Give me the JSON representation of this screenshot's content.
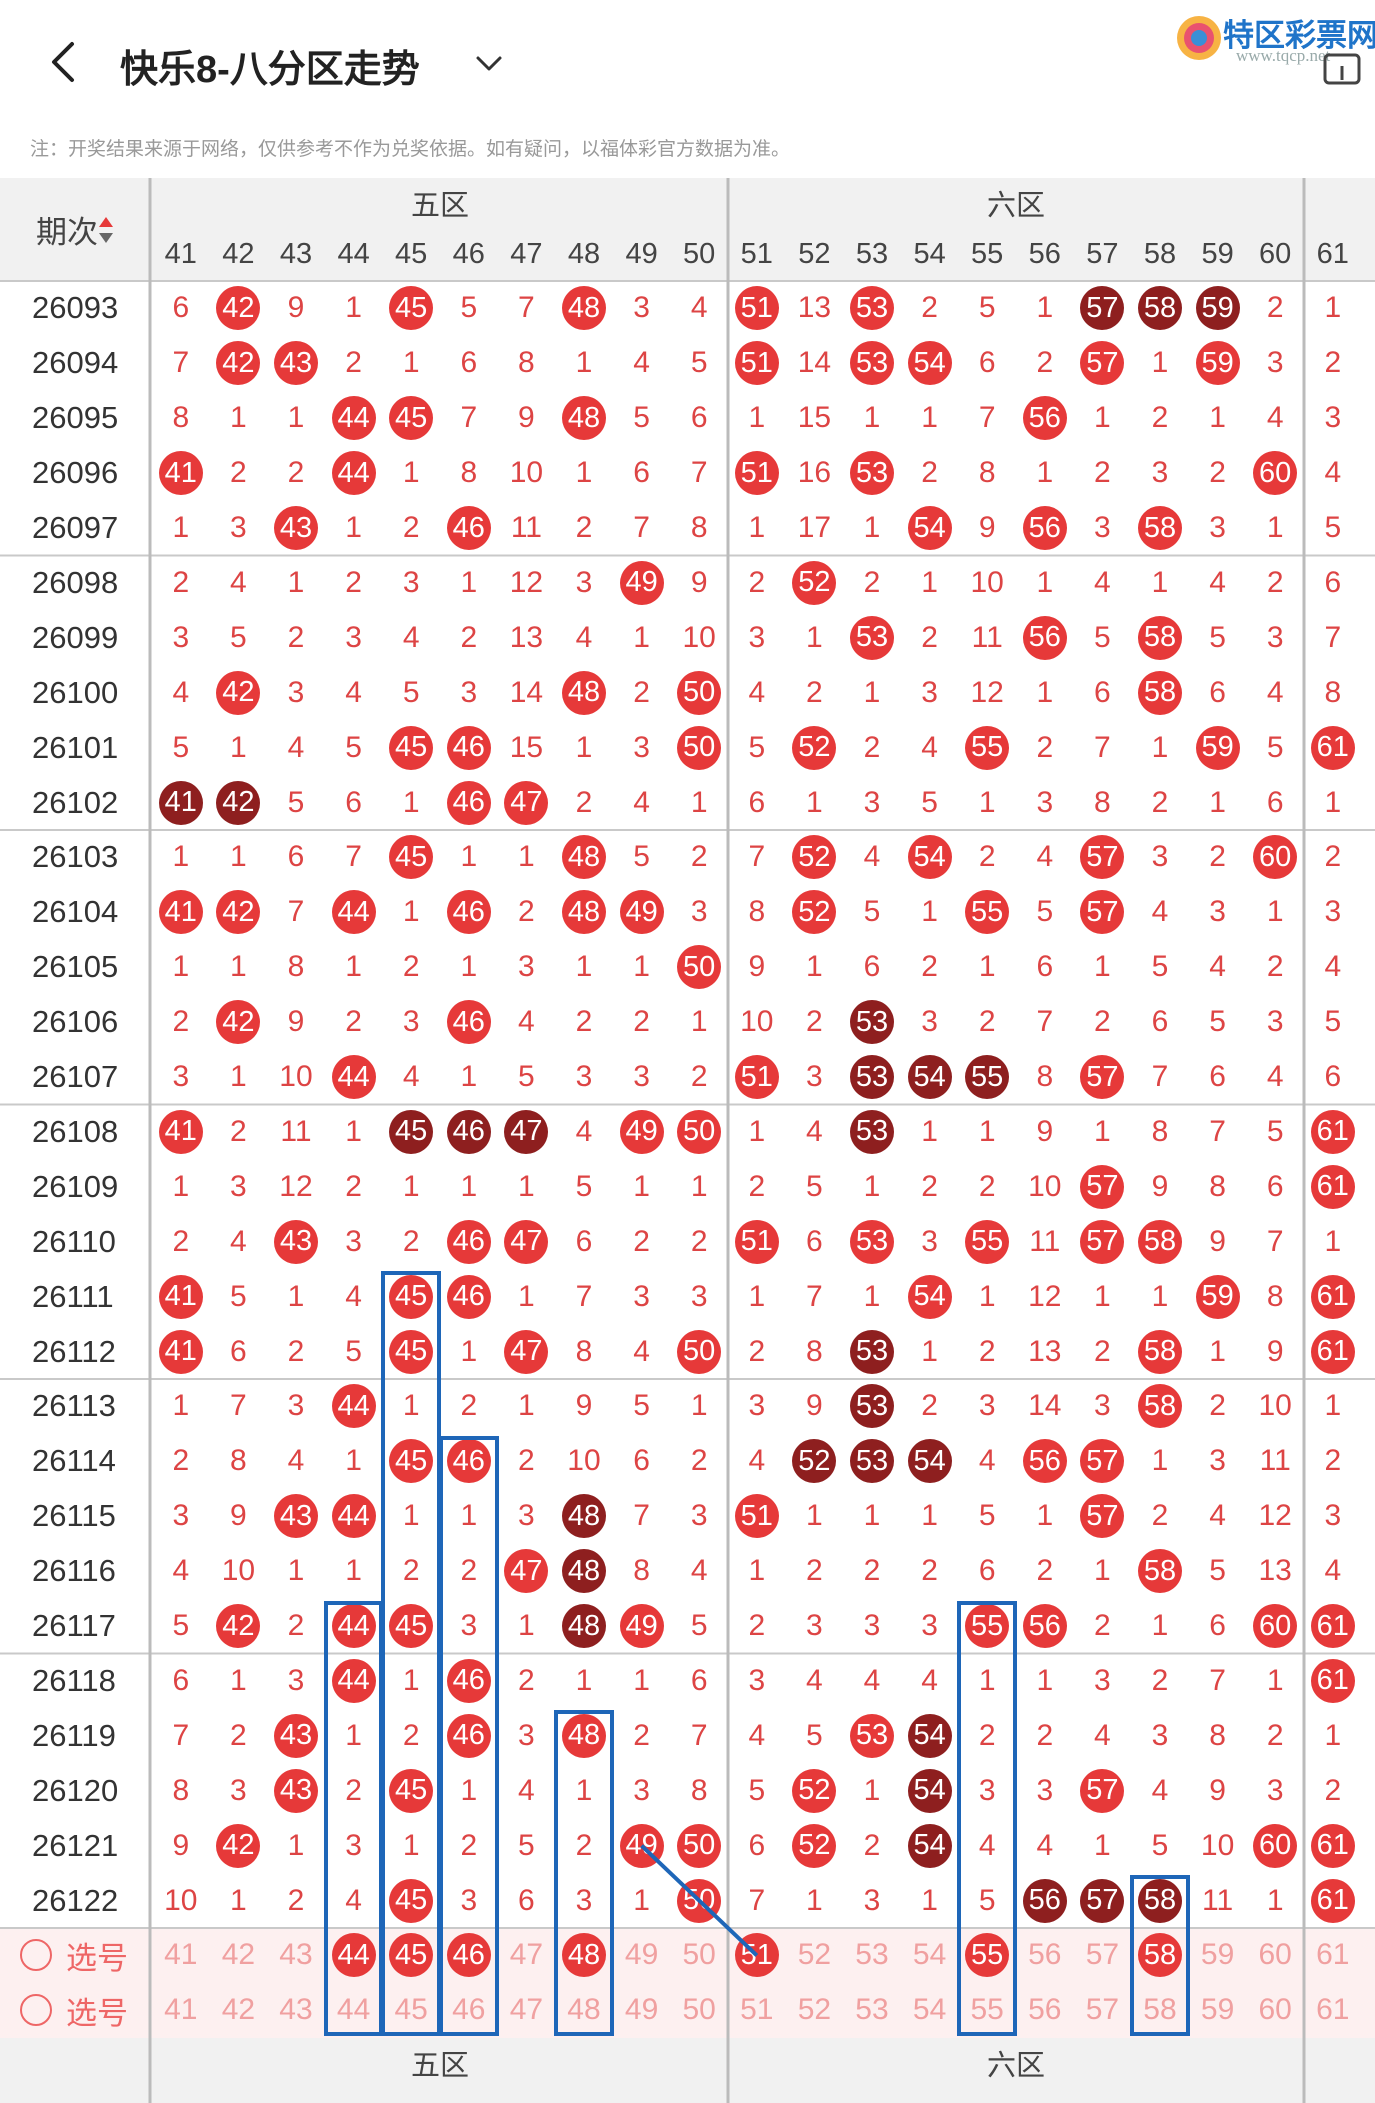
{
  "header": {
    "title": "快乐8-八分区走势",
    "logo_name": "特区彩票网",
    "logo_url": "www.tqcp.net"
  },
  "note": "注：开奖结果来源于网络，仅供参考不作为兑奖依据。如有疑问，以福体彩官方数据为准。",
  "table": {
    "issue_header": "期次",
    "zones": [
      "五区",
      "六区"
    ],
    "columns": [
      41,
      42,
      43,
      44,
      45,
      46,
      47,
      48,
      49,
      50,
      51,
      52,
      53,
      54,
      55,
      56,
      57,
      58,
      59,
      60,
      61
    ],
    "rows": [
      {
        "issue": "26093",
        "cells": [
          "6",
          "42",
          "9",
          "1",
          "45",
          "5",
          "7",
          "48",
          "3",
          "4",
          "51",
          "13",
          "53",
          "2",
          "5",
          "1",
          "57",
          "58",
          "59",
          "2",
          "1"
        ],
        "dark": [
          16,
          17,
          18
        ]
      },
      {
        "issue": "26094",
        "cells": [
          "7",
          "42",
          "43",
          "2",
          "1",
          "6",
          "8",
          "1",
          "4",
          "5",
          "51",
          "14",
          "53",
          "54",
          "6",
          "2",
          "57",
          "1",
          "59",
          "3",
          "2"
        ]
      },
      {
        "issue": "26095",
        "cells": [
          "8",
          "1",
          "1",
          "44",
          "45",
          "7",
          "9",
          "48",
          "5",
          "6",
          "1",
          "15",
          "1",
          "1",
          "7",
          "56",
          "1",
          "2",
          "1",
          "4",
          "3"
        ]
      },
      {
        "issue": "26096",
        "cells": [
          "41",
          "2",
          "2",
          "44",
          "1",
          "8",
          "10",
          "1",
          "6",
          "7",
          "51",
          "16",
          "53",
          "2",
          "8",
          "1",
          "2",
          "3",
          "2",
          "60",
          "4"
        ]
      },
      {
        "issue": "26097",
        "cells": [
          "1",
          "3",
          "43",
          "1",
          "2",
          "46",
          "11",
          "2",
          "7",
          "8",
          "1",
          "17",
          "1",
          "54",
          "9",
          "56",
          "3",
          "58",
          "3",
          "1",
          "5"
        ]
      },
      {
        "issue": "26098",
        "cells": [
          "2",
          "4",
          "1",
          "2",
          "3",
          "1",
          "12",
          "3",
          "49",
          "9",
          "2",
          "52",
          "2",
          "1",
          "10",
          "1",
          "4",
          "1",
          "4",
          "2",
          "6"
        ]
      },
      {
        "issue": "26099",
        "cells": [
          "3",
          "5",
          "2",
          "3",
          "4",
          "2",
          "13",
          "4",
          "1",
          "10",
          "3",
          "1",
          "53",
          "2",
          "11",
          "56",
          "5",
          "58",
          "5",
          "3",
          "7"
        ]
      },
      {
        "issue": "26100",
        "cells": [
          "4",
          "42",
          "3",
          "4",
          "5",
          "3",
          "14",
          "48",
          "2",
          "50",
          "4",
          "2",
          "1",
          "3",
          "12",
          "1",
          "6",
          "58",
          "6",
          "4",
          "8"
        ]
      },
      {
        "issue": "26101",
        "cells": [
          "5",
          "1",
          "4",
          "5",
          "45",
          "46",
          "15",
          "1",
          "3",
          "50",
          "5",
          "52",
          "2",
          "4",
          "55",
          "2",
          "7",
          "1",
          "59",
          "5",
          "61"
        ]
      },
      {
        "issue": "26102",
        "cells": [
          "41",
          "42",
          "5",
          "6",
          "1",
          "46",
          "47",
          "2",
          "4",
          "1",
          "6",
          "1",
          "3",
          "5",
          "1",
          "3",
          "8",
          "2",
          "1",
          "6",
          "1"
        ],
        "dark": [
          0,
          1
        ]
      },
      {
        "issue": "26103",
        "cells": [
          "1",
          "1",
          "6",
          "7",
          "45",
          "1",
          "1",
          "48",
          "5",
          "2",
          "7",
          "52",
          "4",
          "54",
          "2",
          "4",
          "57",
          "3",
          "2",
          "60",
          "2"
        ]
      },
      {
        "issue": "26104",
        "cells": [
          "41",
          "42",
          "7",
          "44",
          "1",
          "46",
          "2",
          "48",
          "49",
          "3",
          "8",
          "52",
          "5",
          "1",
          "55",
          "5",
          "57",
          "4",
          "3",
          "1",
          "3"
        ]
      },
      {
        "issue": "26105",
        "cells": [
          "1",
          "1",
          "8",
          "1",
          "2",
          "1",
          "3",
          "1",
          "1",
          "50",
          "9",
          "1",
          "6",
          "2",
          "1",
          "6",
          "1",
          "5",
          "4",
          "2",
          "4"
        ]
      },
      {
        "issue": "26106",
        "cells": [
          "2",
          "42",
          "9",
          "2",
          "3",
          "46",
          "4",
          "2",
          "2",
          "1",
          "10",
          "2",
          "53",
          "3",
          "2",
          "7",
          "2",
          "6",
          "5",
          "3",
          "5"
        ],
        "dark": [
          12
        ]
      },
      {
        "issue": "26107",
        "cells": [
          "3",
          "1",
          "10",
          "44",
          "4",
          "1",
          "5",
          "3",
          "3",
          "2",
          "51",
          "3",
          "53",
          "54",
          "55",
          "8",
          "57",
          "7",
          "6",
          "4",
          "6"
        ],
        "dark": [
          12,
          13,
          14
        ]
      },
      {
        "issue": "26108",
        "cells": [
          "41",
          "2",
          "11",
          "1",
          "45",
          "46",
          "47",
          "4",
          "49",
          "50",
          "1",
          "4",
          "53",
          "1",
          "1",
          "9",
          "1",
          "8",
          "7",
          "5",
          "61"
        ],
        "dark": [
          4,
          5,
          6,
          12
        ]
      },
      {
        "issue": "26109",
        "cells": [
          "1",
          "3",
          "12",
          "2",
          "1",
          "1",
          "1",
          "5",
          "1",
          "1",
          "2",
          "5",
          "1",
          "2",
          "2",
          "10",
          "57",
          "9",
          "8",
          "6",
          "61"
        ]
      },
      {
        "issue": "26110",
        "cells": [
          "2",
          "4",
          "43",
          "3",
          "2",
          "46",
          "47",
          "6",
          "2",
          "2",
          "51",
          "6",
          "53",
          "3",
          "55",
          "11",
          "57",
          "58",
          "9",
          "7",
          "1"
        ]
      },
      {
        "issue": "26111",
        "cells": [
          "41",
          "5",
          "1",
          "4",
          "45",
          "46",
          "1",
          "7",
          "3",
          "3",
          "1",
          "7",
          "1",
          "54",
          "1",
          "12",
          "1",
          "1",
          "59",
          "8",
          "61"
        ]
      },
      {
        "issue": "26112",
        "cells": [
          "41",
          "6",
          "2",
          "5",
          "45",
          "1",
          "47",
          "8",
          "4",
          "50",
          "2",
          "8",
          "53",
          "1",
          "2",
          "13",
          "2",
          "58",
          "1",
          "9",
          "61"
        ],
        "dark": [
          12
        ]
      },
      {
        "issue": "26113",
        "cells": [
          "1",
          "7",
          "3",
          "44",
          "1",
          "2",
          "1",
          "9",
          "5",
          "1",
          "3",
          "9",
          "53",
          "2",
          "3",
          "14",
          "3",
          "58",
          "2",
          "10",
          "1"
        ],
        "dark": [
          12
        ]
      },
      {
        "issue": "26114",
        "cells": [
          "2",
          "8",
          "4",
          "1",
          "45",
          "46",
          "2",
          "10",
          "6",
          "2",
          "4",
          "52",
          "53",
          "54",
          "4",
          "56",
          "57",
          "1",
          "3",
          "11",
          "2"
        ],
        "dark": [
          11,
          12,
          13
        ]
      },
      {
        "issue": "26115",
        "cells": [
          "3",
          "9",
          "43",
          "44",
          "1",
          "1",
          "3",
          "48",
          "7",
          "3",
          "51",
          "1",
          "1",
          "1",
          "5",
          "1",
          "57",
          "2",
          "4",
          "12",
          "3"
        ],
        "dark": [
          7
        ]
      },
      {
        "issue": "26116",
        "cells": [
          "4",
          "10",
          "1",
          "1",
          "2",
          "2",
          "47",
          "48",
          "8",
          "4",
          "1",
          "2",
          "2",
          "2",
          "6",
          "2",
          "1",
          "58",
          "5",
          "13",
          "4"
        ],
        "dark": [
          7
        ]
      },
      {
        "issue": "26117",
        "cells": [
          "5",
          "42",
          "2",
          "44",
          "45",
          "3",
          "1",
          "48",
          "49",
          "5",
          "2",
          "3",
          "3",
          "3",
          "55",
          "56",
          "2",
          "1",
          "6",
          "60",
          "61"
        ],
        "dark": [
          7
        ]
      },
      {
        "issue": "26118",
        "cells": [
          "6",
          "1",
          "3",
          "44",
          "1",
          "46",
          "2",
          "1",
          "1",
          "6",
          "3",
          "4",
          "4",
          "4",
          "1",
          "1",
          "3",
          "2",
          "7",
          "1",
          "61"
        ]
      },
      {
        "issue": "26119",
        "cells": [
          "7",
          "2",
          "43",
          "1",
          "2",
          "46",
          "3",
          "48",
          "2",
          "7",
          "4",
          "5",
          "53",
          "54",
          "2",
          "2",
          "4",
          "3",
          "8",
          "2",
          "1"
        ],
        "dark": [
          13
        ]
      },
      {
        "issue": "26120",
        "cells": [
          "8",
          "3",
          "43",
          "2",
          "45",
          "1",
          "4",
          "1",
          "3",
          "8",
          "5",
          "52",
          "1",
          "54",
          "3",
          "3",
          "57",
          "4",
          "9",
          "3",
          "2"
        ],
        "dark": [
          13
        ]
      },
      {
        "issue": "26121",
        "cells": [
          "9",
          "42",
          "1",
          "3",
          "1",
          "2",
          "5",
          "2",
          "49",
          "50",
          "6",
          "52",
          "2",
          "54",
          "4",
          "4",
          "1",
          "5",
          "10",
          "60",
          "61"
        ],
        "dark": [
          13
        ]
      },
      {
        "issue": "26122",
        "cells": [
          "10",
          "1",
          "2",
          "4",
          "45",
          "3",
          "6",
          "3",
          "1",
          "50",
          "7",
          "1",
          "3",
          "1",
          "5",
          "56",
          "57",
          "58",
          "11",
          "1",
          "61"
        ],
        "dark": [
          15,
          16,
          17
        ]
      }
    ],
    "select_rows": [
      {
        "label": "选号",
        "balls": [
          3,
          4,
          5,
          7,
          10,
          14,
          17
        ]
      },
      {
        "label": "选号",
        "balls": []
      }
    ]
  }
}
